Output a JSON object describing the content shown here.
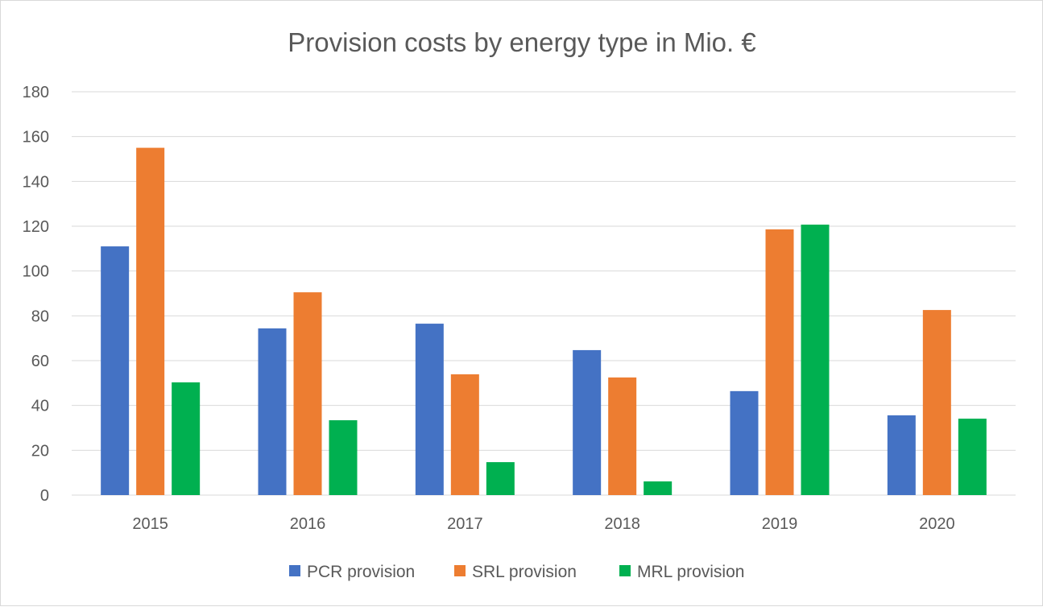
{
  "chart_data": {
    "type": "bar",
    "title": "Provision costs by energy type in  Mio. €",
    "xlabel": "",
    "ylabel": "",
    "ylim": [
      0,
      180
    ],
    "yticks": [
      0,
      20,
      40,
      60,
      80,
      100,
      120,
      140,
      160,
      180
    ],
    "grid": true,
    "legend_position": "bottom",
    "categories": [
      "2015",
      "2016",
      "2017",
      "2018",
      "2019",
      "2020"
    ],
    "series": [
      {
        "name": "PCR provision",
        "color": "#4472c4",
        "values": [
          111,
          74.4,
          76.5,
          64.7,
          46.4,
          35.6
        ]
      },
      {
        "name": "SRL provision",
        "color": "#ed7d31",
        "values": [
          155,
          90.5,
          53.9,
          52.5,
          118.6,
          82.6
        ]
      },
      {
        "name": "MRL provision",
        "color": "#00b050",
        "values": [
          50.3,
          33.4,
          14.7,
          6.1,
          120.7,
          34.1
        ]
      }
    ]
  }
}
